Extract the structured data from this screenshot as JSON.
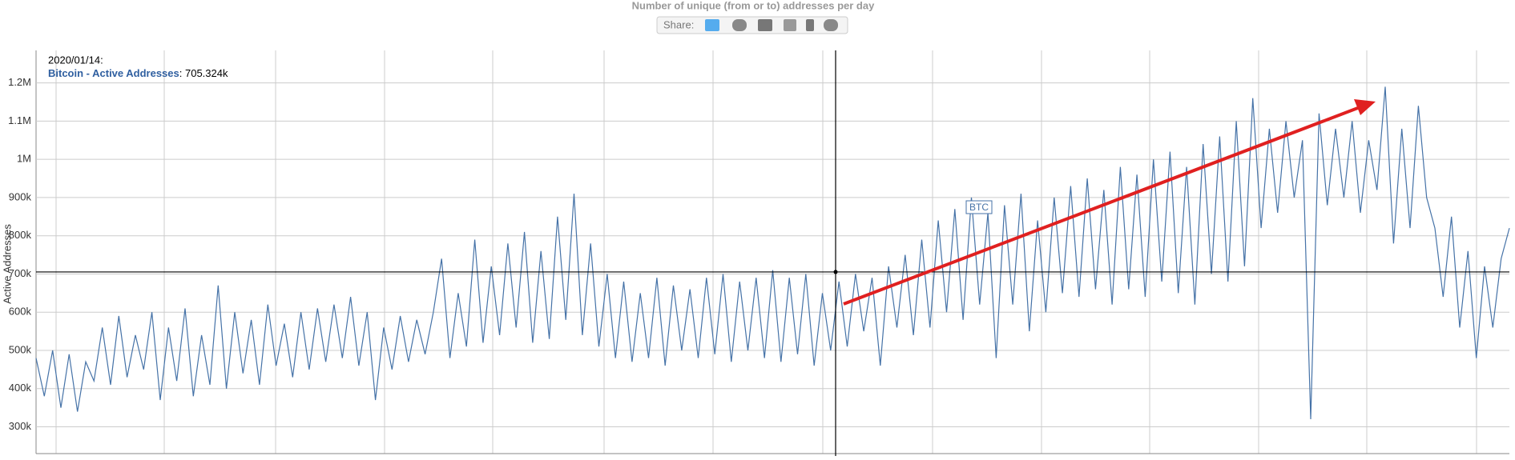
{
  "chart_data": {
    "type": "line",
    "title": "Number of unique (from or to) addresses per day",
    "share_label": "Share:",
    "y_label": "Active Addresses",
    "ylim": [
      230000,
      1285000
    ],
    "yticks": [
      {
        "value": 300000,
        "label": "300k"
      },
      {
        "value": 400000,
        "label": "400k"
      },
      {
        "value": 500000,
        "label": "500k"
      },
      {
        "value": 600000,
        "label": "600k"
      },
      {
        "value": 700000,
        "label": "700k"
      },
      {
        "value": 800000,
        "label": "800k"
      },
      {
        "value": 900000,
        "label": "900k"
      },
      {
        "value": 1000000,
        "label": "1M"
      },
      {
        "value": 1100000,
        "label": "1.1M"
      },
      {
        "value": 1200000,
        "label": "1.2M"
      }
    ],
    "grid": true,
    "series": [
      {
        "name": "Bitcoin - Active Addresses",
        "color": "#4572a7",
        "values": [
          480000,
          380000,
          500000,
          350000,
          490000,
          340000,
          470000,
          420000,
          560000,
          410000,
          590000,
          430000,
          540000,
          450000,
          600000,
          370000,
          560000,
          420000,
          610000,
          380000,
          540000,
          410000,
          670000,
          400000,
          600000,
          440000,
          580000,
          410000,
          620000,
          460000,
          570000,
          430000,
          600000,
          450000,
          610000,
          470000,
          620000,
          480000,
          640000,
          460000,
          600000,
          370000,
          560000,
          450000,
          590000,
          470000,
          580000,
          490000,
          600000,
          740000,
          480000,
          650000,
          510000,
          790000,
          520000,
          720000,
          540000,
          780000,
          560000,
          810000,
          520000,
          760000,
          530000,
          850000,
          580000,
          910000,
          540000,
          780000,
          510000,
          700000,
          480000,
          680000,
          470000,
          650000,
          480000,
          690000,
          460000,
          670000,
          500000,
          660000,
          480000,
          690000,
          490000,
          700000,
          470000,
          680000,
          500000,
          690000,
          480000,
          710000,
          470000,
          690000,
          490000,
          700000,
          460000,
          650000,
          500000,
          680000,
          510000,
          700000,
          550000,
          690000,
          460000,
          720000,
          560000,
          750000,
          540000,
          790000,
          560000,
          840000,
          600000,
          870000,
          580000,
          900000,
          620000,
          860000,
          480000,
          880000,
          620000,
          910000,
          550000,
          840000,
          600000,
          900000,
          650000,
          930000,
          640000,
          950000,
          660000,
          920000,
          620000,
          980000,
          660000,
          960000,
          640000,
          1000000,
          680000,
          1020000,
          650000,
          980000,
          620000,
          1040000,
          700000,
          1060000,
          680000,
          1100000,
          720000,
          1160000,
          820000,
          1080000,
          860000,
          1100000,
          900000,
          1050000,
          320000,
          1120000,
          880000,
          1080000,
          900000,
          1100000,
          860000,
          1050000,
          920000,
          1190000,
          780000,
          1080000,
          820000,
          1140000,
          900000,
          820000,
          640000,
          850000,
          560000,
          760000,
          480000,
          720000,
          560000,
          740000,
          820000
        ]
      }
    ],
    "tooltip": {
      "date": "2020/01/14:",
      "value": 705324,
      "label": ": 705.324k"
    },
    "annotations": [
      "BTC"
    ]
  }
}
